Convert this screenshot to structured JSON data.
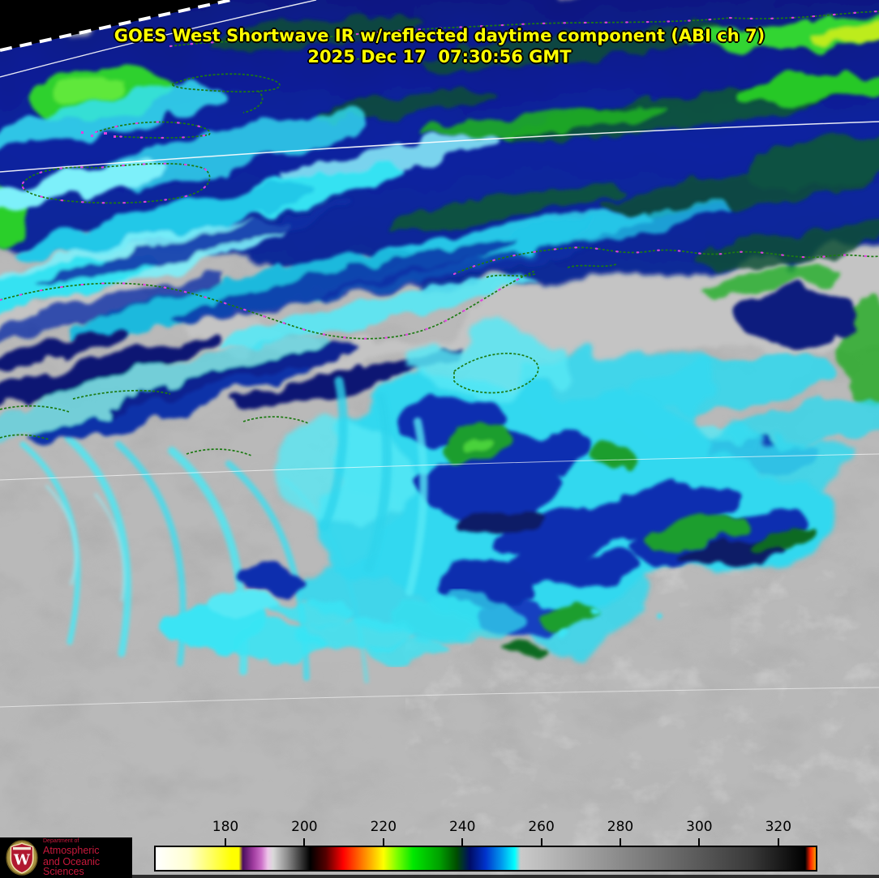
{
  "header": {
    "title_line1": "GOES West Shortwave IR w/reflected daytime component (ABI ch 7)",
    "title_line2": "2025 Dec 17  07:30:56 GMT",
    "text_color": "#ffff00"
  },
  "colorbar": {
    "tick_labels": [
      "180",
      "200",
      "220",
      "240",
      "260",
      "280",
      "300",
      "320"
    ],
    "label_color": "#000000",
    "scale_colors": [
      "#ffffff",
      "#ffff00",
      "#b03cb0",
      "#000000",
      "#ff0000",
      "#ff8800",
      "#ffff00",
      "#00dd00",
      "#005500",
      "#000d66",
      "#0033cc",
      "#00ffff",
      "#c8c8c8",
      "#000000",
      "#ff2200",
      "#ff9900"
    ]
  },
  "logo": {
    "line1": "Department of",
    "line2": "Atmospheric",
    "line3": "and Oceanic Sciences",
    "text_color": "#c8193c",
    "crest_icon": "uw-crest-icon"
  },
  "map": {
    "palette": {
      "cold_cloud_navy": "#0c1c8c",
      "very_cold_green": "#2ed12e",
      "mid_cloud_cyan": "#35e2f2",
      "warm_cloud_gray": "#b9b9b9",
      "coastline_green": "#1c7a12",
      "coastline_dots_magenta": "#f040f0",
      "graticule_white": "#ffffff",
      "off_earth_black": "#000000"
    }
  }
}
